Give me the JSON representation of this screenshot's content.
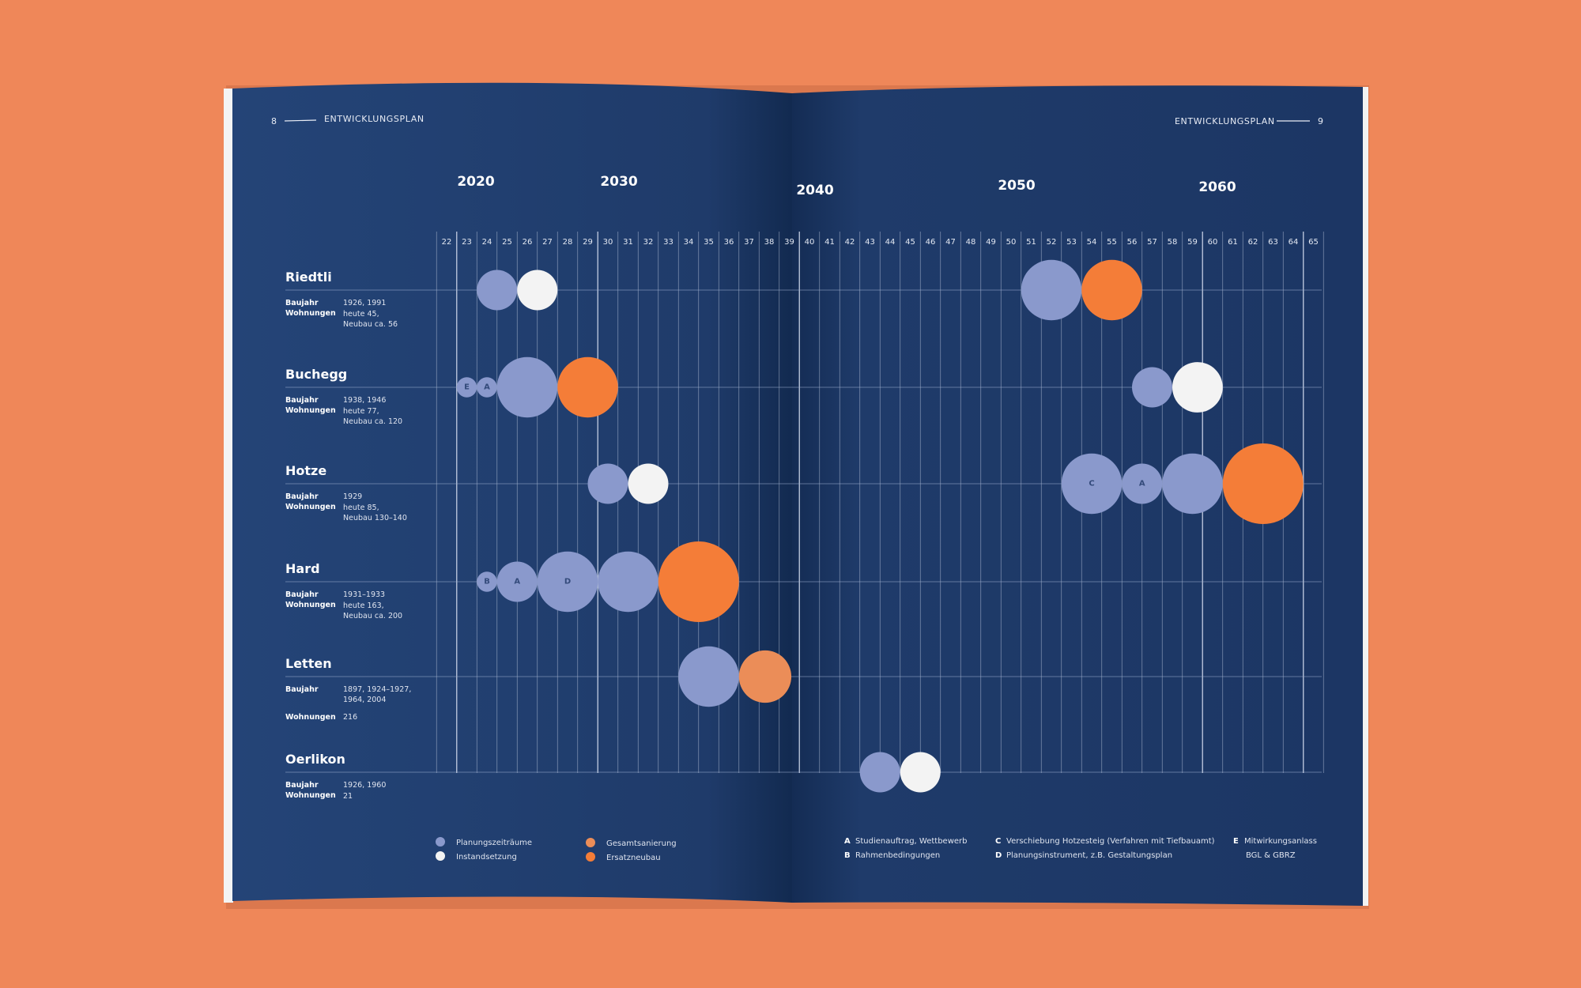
{
  "header": {
    "left_page": "8",
    "left_title": "ENTWICKLUNGSPLAN",
    "right_title": "ENTWICKLUNGSPLAN",
    "right_page": "9"
  },
  "colors": {
    "background": "#ef8759",
    "page": "#1e3866",
    "planung": "#8a99cc",
    "instand": "#f3f3f3",
    "gesamt": "#eb8d58",
    "ersatz": "#f47d38"
  },
  "chart_data": {
    "type": "bubble-timeline",
    "major_years": [
      "2020",
      "2030",
      "2040",
      "2050",
      "2060"
    ],
    "x_ticks": [
      "22",
      "23",
      "24",
      "25",
      "26",
      "27",
      "28",
      "29",
      "30",
      "31",
      "32",
      "33",
      "34",
      "35",
      "36",
      "37",
      "38",
      "39",
      "40",
      "41",
      "42",
      "43",
      "44",
      "45",
      "46",
      "47",
      "48",
      "49",
      "50",
      "51",
      "52",
      "53",
      "54",
      "55",
      "56",
      "57",
      "58",
      "59",
      "60",
      "61",
      "62",
      "63",
      "64",
      "65"
    ],
    "x_range": [
      22,
      65
    ],
    "sites": [
      {
        "name": "Riedtli",
        "baujahr_label": "Baujahr",
        "baujahr": [
          "1926, 1991"
        ],
        "wohnungen_label": "Wohnungen",
        "wohnungen": [
          "heute 45,",
          "Neubau ca. 56"
        ],
        "bubbles": [
          {
            "year": 24.5,
            "span": 2,
            "type": "planung",
            "label": ""
          },
          {
            "year": 26.5,
            "span": 2,
            "type": "instand",
            "label": ""
          },
          {
            "year": 52,
            "span": 3,
            "type": "planung",
            "label": ""
          },
          {
            "year": 55,
            "span": 3,
            "type": "ersatz",
            "label": ""
          }
        ]
      },
      {
        "name": "Buchegg",
        "baujahr_label": "Baujahr",
        "baujahr": [
          "1938, 1946"
        ],
        "wohnungen_label": "Wohnungen",
        "wohnungen": [
          "heute 77,",
          "Neubau ca. 120"
        ],
        "bubbles": [
          {
            "year": 23,
            "span": 1,
            "type": "planung",
            "label": "E"
          },
          {
            "year": 24,
            "span": 1,
            "type": "planung",
            "label": "A"
          },
          {
            "year": 26,
            "span": 3,
            "type": "planung",
            "label": ""
          },
          {
            "year": 29,
            "span": 3,
            "type": "ersatz",
            "label": ""
          },
          {
            "year": 57,
            "span": 2,
            "type": "planung",
            "label": ""
          },
          {
            "year": 59.25,
            "span": 2.5,
            "type": "instand",
            "label": ""
          }
        ]
      },
      {
        "name": "Hotze",
        "baujahr_label": "Baujahr",
        "baujahr": [
          "1929"
        ],
        "wohnungen_label": "Wohnungen",
        "wohnungen": [
          "heute 85,",
          "Neubau 130–140"
        ],
        "bubbles": [
          {
            "year": 30,
            "span": 2,
            "type": "planung",
            "label": ""
          },
          {
            "year": 32,
            "span": 2,
            "type": "instand",
            "label": ""
          },
          {
            "year": 54,
            "span": 3,
            "type": "planung",
            "label": "C"
          },
          {
            "year": 56.5,
            "span": 2,
            "type": "planung",
            "label": "A"
          },
          {
            "year": 59,
            "span": 3,
            "type": "planung",
            "label": ""
          },
          {
            "year": 62.5,
            "span": 4,
            "type": "ersatz",
            "label": ""
          }
        ]
      },
      {
        "name": "Hard",
        "baujahr_label": "Baujahr",
        "baujahr": [
          "1931–1933"
        ],
        "wohnungen_label": "Wohnungen",
        "wohnungen": [
          "heute 163,",
          "Neubau ca. 200"
        ],
        "bubbles": [
          {
            "year": 24,
            "span": 1,
            "type": "planung",
            "label": "B"
          },
          {
            "year": 25.5,
            "span": 2,
            "type": "planung",
            "label": "A"
          },
          {
            "year": 28,
            "span": 3,
            "type": "planung",
            "label": "D"
          },
          {
            "year": 31,
            "span": 3,
            "type": "planung",
            "label": ""
          },
          {
            "year": 34.5,
            "span": 4,
            "type": "ersatz",
            "label": ""
          }
        ]
      },
      {
        "name": "Letten",
        "baujahr_label": "Baujahr",
        "baujahr": [
          "1897, 1924–1927,",
          "1964, 2004"
        ],
        "wohnungen_label": "Wohnungen",
        "wohnungen": [
          "216"
        ],
        "bubbles": [
          {
            "year": 35,
            "span": 3,
            "type": "planung",
            "label": ""
          },
          {
            "year": 37.8,
            "span": 2.6,
            "type": "gesamt",
            "label": ""
          }
        ]
      },
      {
        "name": "Oerlikon",
        "baujahr_label": "Baujahr",
        "baujahr": [
          "1926, 1960"
        ],
        "wohnungen_label": "Wohnungen",
        "wohnungen": [
          "21"
        ],
        "bubbles": [
          {
            "year": 43.5,
            "span": 2,
            "type": "planung",
            "label": ""
          },
          {
            "year": 45.5,
            "span": 2,
            "type": "instand",
            "label": ""
          }
        ]
      }
    ],
    "legend": [
      {
        "type": "planung",
        "label": "Planungszeiträume"
      },
      {
        "type": "instand",
        "label": "Instandsetzung"
      },
      {
        "type": "gesamt",
        "label": "Gesamtsanierung"
      },
      {
        "type": "ersatz",
        "label": "Ersatzneubau"
      }
    ],
    "notes": [
      {
        "key": "A",
        "text": "Studienauftrag, Wettbewerb"
      },
      {
        "key": "B",
        "text": "Rahmenbedingungen"
      },
      {
        "key": "C",
        "text": "Verschiebung Hotzesteig (Verfahren mit Tiefbauamt)"
      },
      {
        "key": "D",
        "text": "Planungsinstrument, z.B. Gestaltungsplan"
      },
      {
        "key": "E",
        "text": "Mitwirkungsanlass",
        "text2": "BGL & GBRZ"
      }
    ]
  }
}
